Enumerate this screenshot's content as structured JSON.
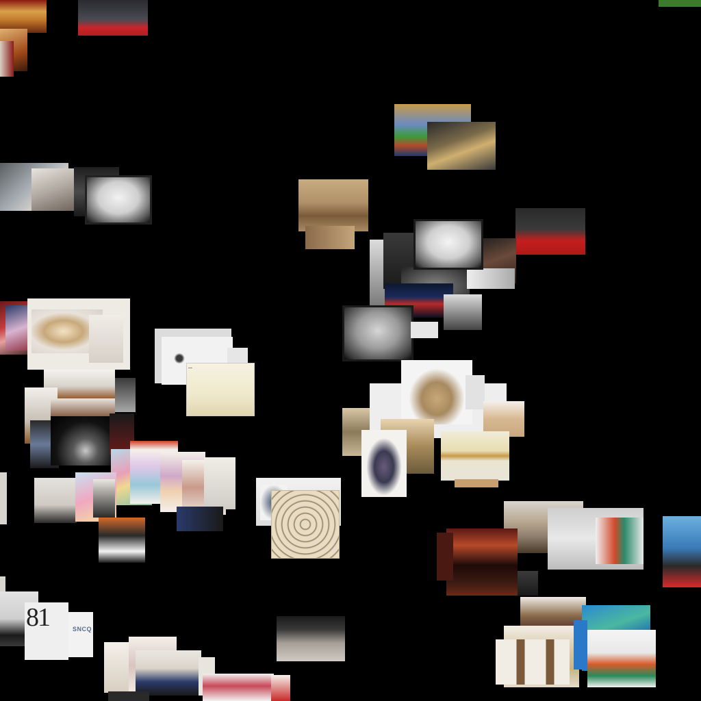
{
  "gallery": {
    "background": "#000000",
    "labels": {
      "stage_number": "81",
      "banner_text": "SNCQ",
      "sketch_caption": "..."
    }
  }
}
